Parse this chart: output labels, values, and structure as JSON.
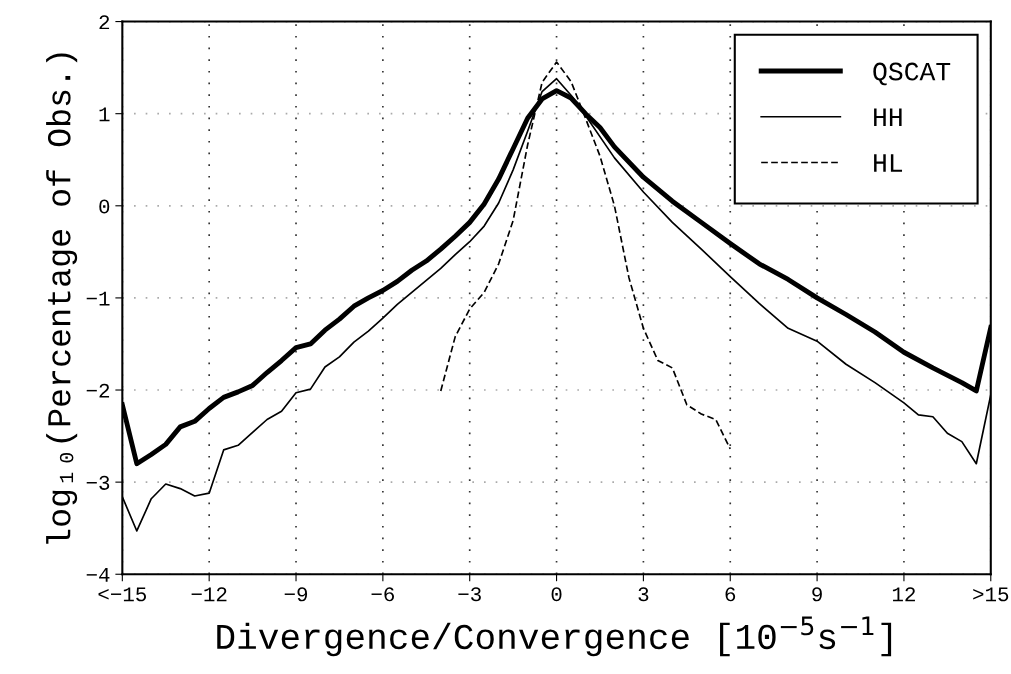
{
  "chart_data": {
    "type": "line",
    "xlabel": "Divergence/Convergence [10$^{−5}$s$^{−1}$]",
    "ylabel": "log₁₀(Percentage of Obs.)",
    "xlim": [
      -15,
      15
    ],
    "xticks": [
      {
        "value": -15,
        "label": "<−15"
      },
      -12,
      -9,
      -6,
      -3,
      0,
      3,
      6,
      9,
      12,
      {
        "value": 15,
        "label": ">15"
      }
    ],
    "ylim": [
      -4,
      2
    ],
    "yticks": [
      -4,
      -3,
      -2,
      -1,
      0,
      1,
      2
    ],
    "grid": true,
    "legend": "top right",
    "series": [
      {
        "name": "QSCAT",
        "color": "#000000",
        "line_style": "solid",
        "x": [
          -15,
          -14.5,
          -14,
          -13.5,
          -13,
          -12.5,
          -12,
          -11.5,
          -11,
          -10.5,
          -10,
          -9.5,
          -9,
          -8.5,
          -8,
          -7.5,
          -7,
          -6.5,
          -6,
          -5.5,
          -5,
          -4.5,
          -4,
          -3.5,
          -3,
          -2.5,
          -2,
          -1.5,
          -1,
          -0.5,
          0,
          0.5,
          1,
          1.5,
          2,
          3,
          4,
          5,
          6,
          7,
          8,
          9,
          10,
          11,
          12,
          13,
          14,
          14.5,
          15
        ],
        "values": [
          -2.16,
          -2.8,
          -2.7,
          -2.59,
          -2.4,
          -2.34,
          -2.2,
          -2.08,
          -2.02,
          -1.95,
          -1.81,
          -1.68,
          -1.54,
          -1.5,
          -1.35,
          -1.23,
          -1.09,
          -1.0,
          -0.92,
          -0.82,
          -0.7,
          -0.6,
          -0.47,
          -0.33,
          -0.18,
          0.02,
          0.29,
          0.62,
          0.95,
          1.16,
          1.25,
          1.17,
          1.0,
          0.85,
          0.64,
          0.31,
          0.05,
          -0.18,
          -0.41,
          -0.63,
          -0.8,
          -1.0,
          -1.18,
          -1.37,
          -1.59,
          -1.76,
          -1.92,
          -2.01,
          -1.32
        ]
      },
      {
        "name": "HH",
        "color": "#000000",
        "line_style": "solid",
        "x": [
          -15,
          -14.5,
          -14,
          -13.5,
          -13,
          -12.5,
          -12,
          -11.5,
          -11,
          -10.5,
          -10,
          -9.5,
          -9,
          -8.5,
          -8,
          -7.5,
          -7,
          -6.5,
          -6,
          -5.5,
          -5,
          -4.5,
          -4,
          -3.5,
          -3,
          -2.5,
          -2,
          -1.5,
          -1,
          -0.5,
          0,
          0.5,
          1,
          2,
          3,
          4,
          5,
          6,
          7,
          8,
          9,
          10,
          11,
          12,
          12.5,
          13,
          13.5,
          14,
          14.5,
          15
        ],
        "values": [
          -3.16,
          -3.53,
          -3.18,
          -3.02,
          -3.07,
          -3.15,
          -3.12,
          -2.65,
          -2.6,
          -2.46,
          -2.32,
          -2.23,
          -2.03,
          -1.99,
          -1.75,
          -1.64,
          -1.48,
          -1.36,
          -1.22,
          -1.07,
          -0.94,
          -0.81,
          -0.68,
          -0.53,
          -0.39,
          -0.22,
          0.03,
          0.39,
          0.81,
          1.24,
          1.38,
          1.2,
          0.98,
          0.52,
          0.15,
          -0.18,
          -0.47,
          -0.77,
          -1.06,
          -1.33,
          -1.47,
          -1.72,
          -1.92,
          -2.14,
          -2.27,
          -2.29,
          -2.47,
          -2.56,
          -2.8,
          -2.05
        ]
      },
      {
        "name": "HL",
        "color": "#000000",
        "line_style": "dashed",
        "x": [
          -4,
          -3.5,
          -3,
          -2.5,
          -2,
          -1.5,
          -1,
          -0.5,
          0,
          0.5,
          1,
          1.5,
          2,
          2.5,
          3,
          3.5,
          4,
          4.5,
          5,
          5.5,
          6
        ],
        "values": [
          -2.01,
          -1.42,
          -1.12,
          -0.94,
          -0.63,
          -0.16,
          0.66,
          1.34,
          1.56,
          1.35,
          0.95,
          0.54,
          0.0,
          -0.78,
          -1.33,
          -1.68,
          -1.76,
          -2.16,
          -2.26,
          -2.32,
          -2.64
        ]
      }
    ]
  }
}
